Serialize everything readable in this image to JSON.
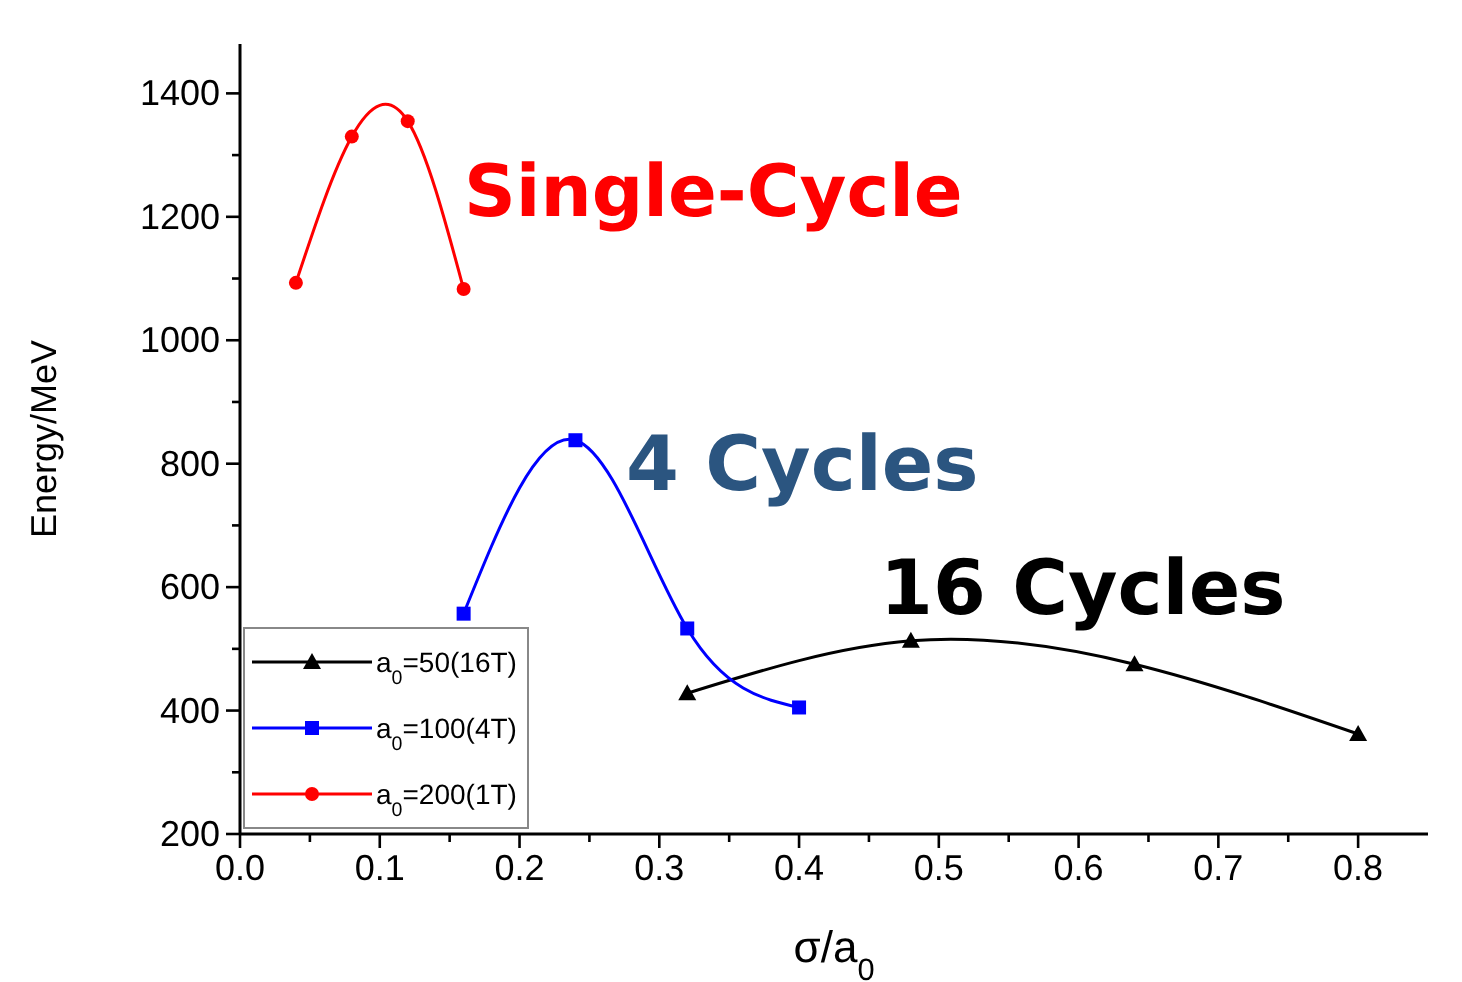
{
  "chart_data": {
    "type": "line",
    "xlabel": "σ/a$_{0}$",
    "ylabel": "Energy/MeV",
    "xlim": [
      0,
      0.85
    ],
    "ylim": [
      200,
      1480
    ],
    "xticks": [
      {
        "value": 0,
        "label": "0.0"
      },
      {
        "value": 0.05,
        "label": null
      },
      0.1,
      {
        "value": 0.15,
        "label": null
      },
      0.2,
      {
        "value": 0.25,
        "label": null
      },
      0.3,
      {
        "value": 0.35,
        "label": null
      },
      0.4,
      {
        "value": 0.45,
        "label": null
      },
      0.5,
      {
        "value": 0.55,
        "label": null
      },
      0.6,
      {
        "value": 0.65,
        "label": null
      },
      0.7,
      {
        "value": 0.75,
        "label": null
      },
      0.8
    ],
    "yticks": [
      200,
      {
        "value": 300,
        "label": null
      },
      400,
      {
        "value": 500,
        "label": null
      },
      600,
      {
        "value": 700,
        "label": null
      },
      800,
      {
        "value": 900,
        "label": null
      },
      1000,
      {
        "value": 1100,
        "label": null
      },
      1200,
      {
        "value": 1300,
        "label": null
      },
      1400
    ],
    "grid": false,
    "legend": "bottom left",
    "series": [
      {
        "name": "a$_{0}$=50(16T)",
        "color": "#000000",
        "marker": "triangle",
        "x": [
          0.32,
          0.48,
          0.64,
          0.8
        ],
        "values": [
          428,
          513,
          475,
          362
        ]
      },
      {
        "name": "a$_{0}$=100(4T)",
        "color": "#0000ff",
        "marker": "square",
        "x": [
          0.16,
          0.24,
          0.32,
          0.4
        ],
        "values": [
          557,
          838,
          533,
          405
        ]
      },
      {
        "name": "a$_{0}$=200(1T)",
        "color": "#ff0000",
        "marker": "circle",
        "x": [
          0.04,
          0.08,
          0.12,
          0.16
        ],
        "values": [
          1093,
          1330,
          1355,
          1083
        ]
      }
    ],
    "annotations": [
      "Single-Cycle",
      "4 Cycles",
      "16 Cycles"
    ]
  }
}
